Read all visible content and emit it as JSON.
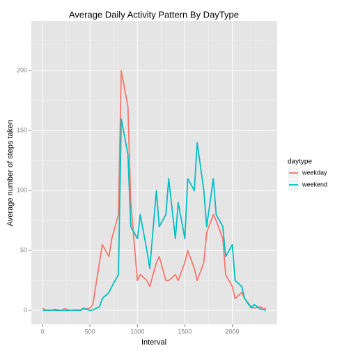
{
  "chart_data": {
    "type": "line",
    "title": "Average Daily Activity Pattern By DayType",
    "x_label": "Interval",
    "y_label": "Average number of steps taken",
    "legend_title": "daytype",
    "legend_position": "right",
    "grid": true,
    "minor_grid": true,
    "x": [
      0,
      30,
      100,
      130,
      200,
      230,
      300,
      330,
      400,
      430,
      500,
      530,
      600,
      630,
      700,
      730,
      800,
      830,
      900,
      930,
      1000,
      1030,
      1100,
      1130,
      1200,
      1230,
      1300,
      1330,
      1400,
      1430,
      1500,
      1530,
      1600,
      1630,
      1700,
      1730,
      1800,
      1830,
      1900,
      1930,
      2000,
      2030,
      2100,
      2130,
      2200,
      2230,
      2300,
      2330,
      2355
    ],
    "series": [
      {
        "name": "weekday",
        "color": "#F8766D",
        "values": [
          2,
          0.5,
          0.3,
          1,
          0,
          1.5,
          0,
          0.5,
          0.5,
          1,
          2,
          5,
          40,
          55,
          45,
          60,
          80,
          200,
          170,
          90,
          25,
          30,
          25,
          20,
          40,
          45,
          25,
          25,
          30,
          25,
          40,
          50,
          35,
          25,
          40,
          65,
          80,
          75,
          60,
          30,
          20,
          10,
          15,
          10,
          3,
          2,
          3,
          1,
          2
        ]
      },
      {
        "name": "weekend",
        "color": "#00BFC4",
        "values": [
          0,
          0,
          0,
          0,
          0,
          0,
          0,
          0,
          0,
          2,
          0,
          0.5,
          3,
          10,
          15,
          20,
          30,
          160,
          130,
          70,
          60,
          80,
          50,
          35,
          100,
          70,
          80,
          110,
          60,
          90,
          60,
          110,
          100,
          140,
          100,
          70,
          110,
          80,
          70,
          45,
          55,
          25,
          20,
          10,
          2,
          5,
          1,
          1,
          0
        ]
      }
    ],
    "xlim": [
      -118,
      2473
    ],
    "xticks": [
      0,
      500,
      1000,
      1500,
      2000
    ],
    "ylim": [
      -11.5,
      241.5
    ],
    "yticks": [
      0,
      50,
      100,
      150,
      200
    ]
  }
}
